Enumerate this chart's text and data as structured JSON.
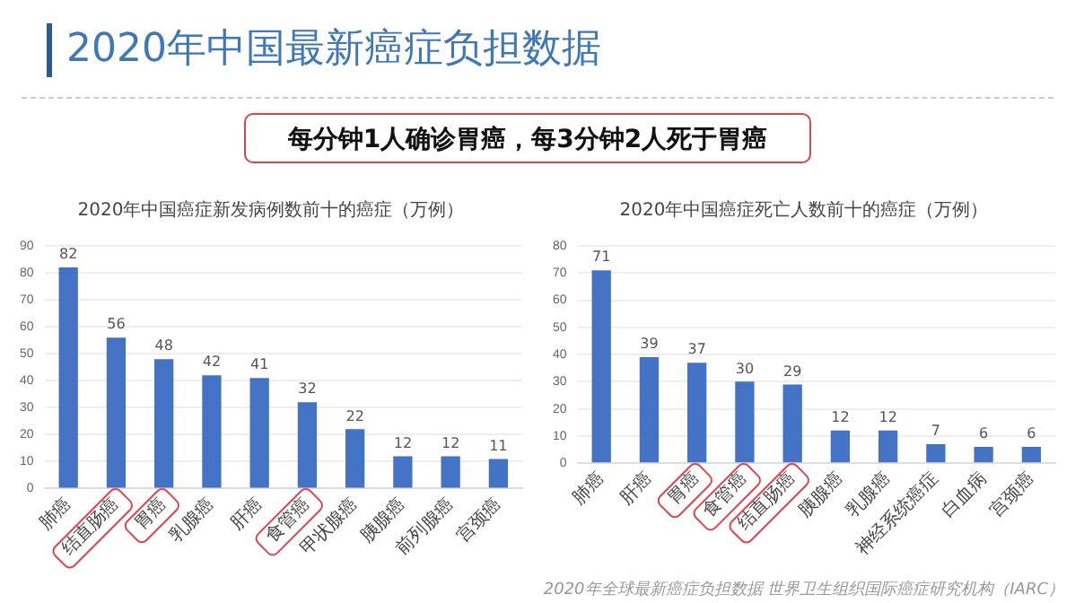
{
  "chart_data": [
    {
      "type": "other",
      "title": "2020年中国最新癌症负担数据",
      "annotations": [
        "每分钟1人确诊胃癌，每3分钟2人死于胃癌"
      ]
    },
    {
      "type": "bar",
      "title": "2020年中国癌症新发病例数前十的癌症（万例）",
      "categories": [
        "肺癌",
        "结直肠癌",
        "胃癌",
        "乳腺癌",
        "肝癌",
        "食管癌",
        "甲状腺癌",
        "胰腺癌",
        "前列腺癌",
        "宫颈癌"
      ],
      "values": [
        82,
        56,
        48,
        42,
        41,
        32,
        22,
        12,
        12,
        11
      ],
      "color": "#4472c4",
      "ylim": [
        0,
        90
      ],
      "yticks": [
        0,
        10,
        20,
        30,
        40,
        50,
        60,
        70,
        80,
        90
      ],
      "grid": "y",
      "legend": false,
      "data_labels": true
    },
    {
      "type": "bar",
      "title": "2020年中国癌症死亡人数前十的癌症（万例）",
      "categories": [
        "肺癌",
        "肝癌",
        "胃癌",
        "食管癌",
        "结直肠癌",
        "胰腺癌",
        "乳腺癌",
        "神经系统癌症",
        "白血病",
        "宫颈癌"
      ],
      "values": [
        71,
        39,
        37,
        30,
        29,
        12,
        12,
        7,
        6,
        6
      ],
      "color": "#4472c4",
      "ylim": [
        0,
        80
      ],
      "yticks": [
        0,
        10,
        20,
        30,
        40,
        50,
        60,
        70,
        80
      ],
      "grid": "y",
      "legend": false,
      "data_labels": true,
      "annotations": [
        "2020年全球最新癌症负担数据  世界卫生组织国际癌症研究机构（IARC）"
      ]
    }
  ]
}
